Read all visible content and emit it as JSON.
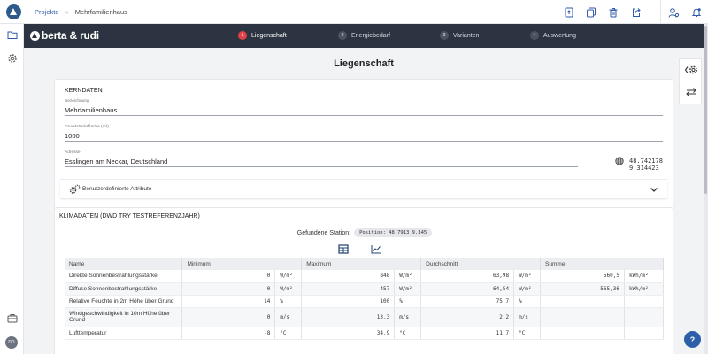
{
  "breadcrumb": {
    "projects": "Projekte",
    "separator": "»",
    "current": "Mehrfamilienhaus"
  },
  "brand": {
    "name": "berta & rudi"
  },
  "steps": [
    {
      "num": "1",
      "label": "Liegenschaft",
      "active": true
    },
    {
      "num": "2",
      "label": "Energiebedarf",
      "active": false
    },
    {
      "num": "3",
      "label": "Varianten",
      "active": false
    },
    {
      "num": "4",
      "label": "Auswertung",
      "active": false
    }
  ],
  "page": {
    "title": "Liegenschaft"
  },
  "kerndaten": {
    "heading": "KERNDATEN",
    "bezeichnung": {
      "label": "Bezeichnung",
      "value": "Mehrfamilienhaus"
    },
    "grundstueck": {
      "label": "Grundstücksfläche (m²)",
      "value": "1000"
    },
    "adresse": {
      "label": "Adresse",
      "value": "Esslingen am Neckar, Deutschland"
    },
    "coords": "48.742178 9.314423",
    "attributes_label": "Benutzerdefinierte Attribute"
  },
  "klima": {
    "heading": "KLIMADATEN (DWD TRY TESTREFERENZJAHR)",
    "station_label": "Gefundene Station:",
    "station_badge": "Position: 48.7913 9.345",
    "columns": [
      "Name",
      "Minimum",
      "Maximum",
      "Durchschnitt",
      "Summe"
    ],
    "rows": [
      {
        "name": "Direkte Sonnenbestrahlungsstärke",
        "min": "0",
        "min_unit": "W/m²",
        "max": "848",
        "max_unit": "W/m²",
        "avg": "63,98",
        "avg_unit": "W/m²",
        "sum": "560,5",
        "sum_unit": "kWh/m²"
      },
      {
        "name": "Diffuse Sonnenbestrahlungsstärke",
        "min": "0",
        "min_unit": "W/m²",
        "max": "457",
        "max_unit": "W/m²",
        "avg": "64,54",
        "avg_unit": "W/m²",
        "sum": "565,36",
        "sum_unit": "kWh/m²"
      },
      {
        "name": "Relative Feuchte in 2m Höhe über Grund",
        "min": "14",
        "min_unit": "%",
        "max": "100",
        "max_unit": "%",
        "avg": "75,7",
        "avg_unit": "%",
        "sum": "",
        "sum_unit": ""
      },
      {
        "name": "Windgeschwindigkeit in 10m Höhe über Grund",
        "min": "0",
        "min_unit": "m/s",
        "max": "13,3",
        "max_unit": "m/s",
        "avg": "2,2",
        "avg_unit": "m/s",
        "sum": "",
        "sum_unit": ""
      },
      {
        "name": "Lufttemperatur",
        "min": "-8",
        "min_unit": "°C",
        "max": "34,9",
        "max_unit": "°C",
        "avg": "11,7",
        "avg_unit": "°C",
        "sum": "",
        "sum_unit": ""
      }
    ]
  },
  "user": {
    "initials": "RR"
  },
  "help": {
    "label": "?"
  },
  "icons": {
    "top": [
      "upload-doc-icon",
      "copy-icon",
      "delete-icon",
      "share-icon",
      "user-settings-icon",
      "notifications-icon"
    ],
    "rail": [
      "folder-icon",
      "settings-icon",
      "briefcase-icon"
    ],
    "right": [
      "collapse-settings-icon",
      "swap-icon"
    ]
  },
  "colors": {
    "accent": "#2d5aa8",
    "stepbar": "#2d3441",
    "active_step": "#e0424b"
  }
}
